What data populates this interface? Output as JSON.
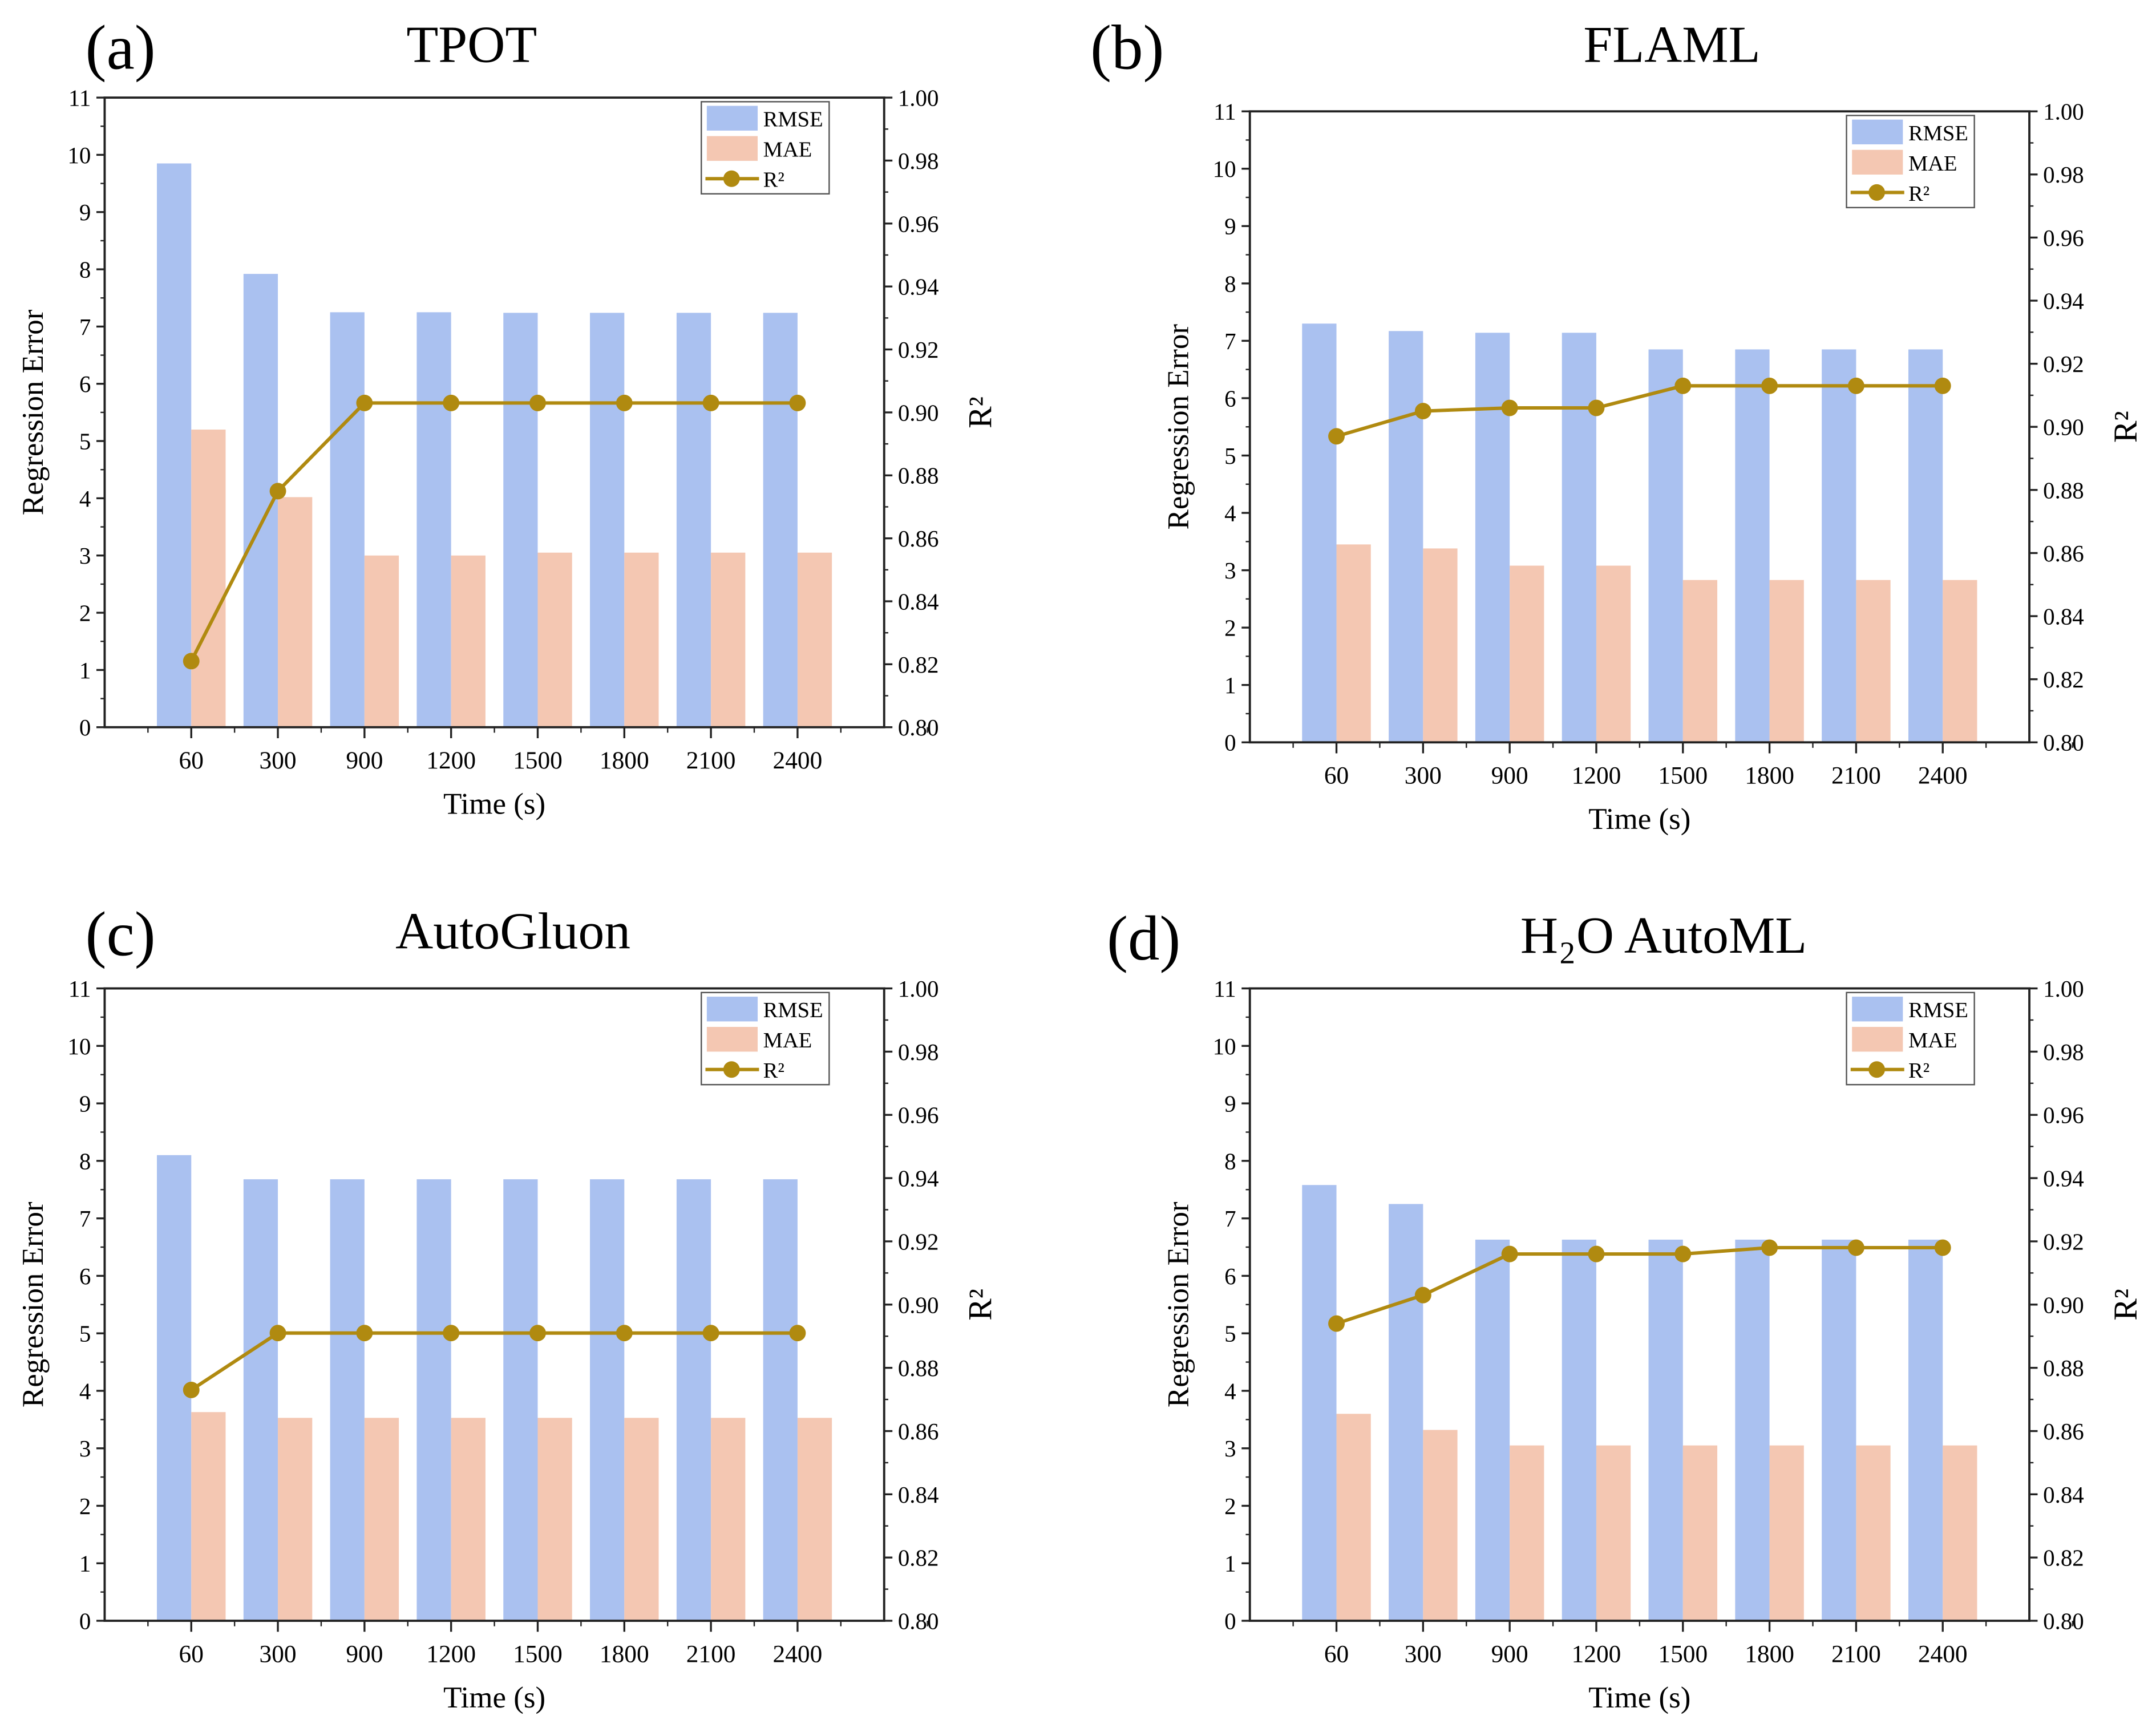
{
  "colors": {
    "rmse": "#aac1f0",
    "mae": "#f4c7b2",
    "r2": "#b08a10",
    "axis": "#222222"
  },
  "chart_data": [
    {
      "type": "bar",
      "panel_label": "(a)",
      "title": "TPOT",
      "xlabel": "Time (s)",
      "ylabel": "Regression Error",
      "y2label": "R²",
      "ylim": [
        0,
        11
      ],
      "y2lim": [
        0.8,
        1.0
      ],
      "categories": [
        "60",
        "300",
        "900",
        "1200",
        "1500",
        "1800",
        "2100",
        "2400"
      ],
      "series": [
        {
          "name": "RMSE",
          "axis": "left",
          "kind": "bar",
          "values": [
            9.85,
            7.92,
            7.25,
            7.25,
            7.24,
            7.24,
            7.24,
            7.24
          ]
        },
        {
          "name": "MAE",
          "axis": "left",
          "kind": "bar",
          "values": [
            5.2,
            4.02,
            3.0,
            3.0,
            3.05,
            3.05,
            3.05,
            3.05
          ]
        },
        {
          "name": "R²",
          "axis": "right",
          "kind": "line",
          "values": [
            0.821,
            0.875,
            0.903,
            0.903,
            0.903,
            0.903,
            0.903,
            0.903
          ]
        }
      ],
      "legend": "top-right"
    },
    {
      "type": "bar",
      "panel_label": "(b)",
      "title": "FLAML",
      "xlabel": "Time (s)",
      "ylabel": "Regression Error",
      "y2label": "R²",
      "ylim": [
        0,
        11
      ],
      "y2lim": [
        0.8,
        1.0
      ],
      "categories": [
        "60",
        "300",
        "900",
        "1200",
        "1500",
        "1800",
        "2100",
        "2400"
      ],
      "series": [
        {
          "name": "RMSE",
          "axis": "left",
          "kind": "bar",
          "values": [
            7.3,
            7.17,
            7.14,
            7.14,
            6.85,
            6.85,
            6.85,
            6.85
          ]
        },
        {
          "name": "MAE",
          "axis": "left",
          "kind": "bar",
          "values": [
            3.45,
            3.38,
            3.08,
            3.08,
            2.83,
            2.83,
            2.83,
            2.83
          ]
        },
        {
          "name": "R²",
          "axis": "right",
          "kind": "line",
          "values": [
            0.897,
            0.905,
            0.906,
            0.906,
            0.913,
            0.913,
            0.913,
            0.913
          ]
        }
      ],
      "legend": "top-right"
    },
    {
      "type": "bar",
      "panel_label": "(c)",
      "title": "AutoGluon",
      "xlabel": "Time (s)",
      "ylabel": "Regression Error",
      "y2label": "R²",
      "ylim": [
        0,
        11
      ],
      "y2lim": [
        0.8,
        1.0
      ],
      "categories": [
        "60",
        "300",
        "900",
        "1200",
        "1500",
        "1800",
        "2100",
        "2400"
      ],
      "series": [
        {
          "name": "RMSE",
          "axis": "left",
          "kind": "bar",
          "values": [
            8.1,
            7.68,
            7.68,
            7.68,
            7.68,
            7.68,
            7.68,
            7.68
          ]
        },
        {
          "name": "MAE",
          "axis": "left",
          "kind": "bar",
          "values": [
            3.63,
            3.53,
            3.53,
            3.53,
            3.53,
            3.53,
            3.53,
            3.53
          ]
        },
        {
          "name": "R²",
          "axis": "right",
          "kind": "line",
          "values": [
            0.873,
            0.891,
            0.891,
            0.891,
            0.891,
            0.891,
            0.891,
            0.891
          ]
        }
      ],
      "legend": "top-right"
    },
    {
      "type": "bar",
      "panel_label": "(d)",
      "title": "H₂O AutoML",
      "xlabel": "Time (s)",
      "ylabel": "Regression Error",
      "y2label": "R²",
      "ylim": [
        0,
        11
      ],
      "y2lim": [
        0.8,
        1.0
      ],
      "categories": [
        "60",
        "300",
        "900",
        "1200",
        "1500",
        "1800",
        "2100",
        "2400"
      ],
      "series": [
        {
          "name": "RMSE",
          "axis": "left",
          "kind": "bar",
          "values": [
            7.58,
            7.25,
            6.63,
            6.63,
            6.63,
            6.63,
            6.63,
            6.63
          ]
        },
        {
          "name": "MAE",
          "axis": "left",
          "kind": "bar",
          "values": [
            3.6,
            3.32,
            3.05,
            3.05,
            3.05,
            3.05,
            3.05,
            3.05
          ]
        },
        {
          "name": "R²",
          "axis": "right",
          "kind": "line",
          "values": [
            0.894,
            0.903,
            0.916,
            0.916,
            0.916,
            0.918,
            0.918,
            0.918
          ]
        }
      ],
      "legend": "top-right"
    }
  ]
}
